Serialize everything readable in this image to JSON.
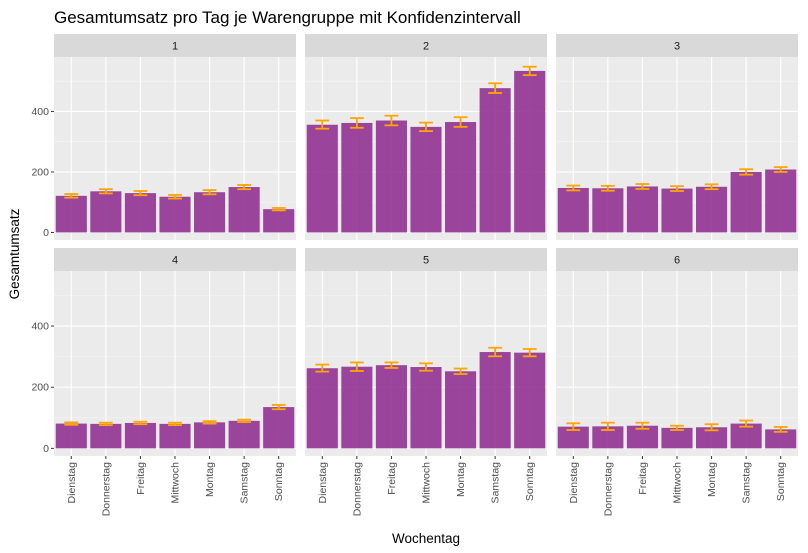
{
  "chart_data": {
    "type": "bar",
    "title": "Gesamtumsatz pro Tag je Warengruppe mit Konfidenzintervall",
    "xlabel": "Wochentag",
    "ylabel": "Gesamtumsatz",
    "categories": [
      "Dienstag",
      "Donnerstag",
      "Freitag",
      "Mittwoch",
      "Montag",
      "Samstag",
      "Sonntag"
    ],
    "yticks": [
      0,
      200,
      400
    ],
    "ylim": [
      -25,
      580
    ],
    "grid": true,
    "facet_layout": "2 rows x 3 columns",
    "colors": {
      "bar": "#8e2c91",
      "error_bar": "#ffa500",
      "panel_background": "#ebebeb",
      "strip_background": "#d9d9d9",
      "grid_major": "#ffffff"
    },
    "facets": [
      {
        "label": "1",
        "values": [
          121,
          136,
          130,
          118,
          133,
          150,
          77
        ],
        "ci_low": [
          115,
          129,
          123,
          112,
          126,
          143,
          73
        ],
        "ci_high": [
          127,
          143,
          137,
          124,
          140,
          157,
          81
        ]
      },
      {
        "label": "2",
        "values": [
          356,
          362,
          370,
          349,
          365,
          477,
          534
        ],
        "ci_low": [
          343,
          346,
          354,
          335,
          349,
          461,
          520
        ],
        "ci_high": [
          370,
          378,
          386,
          363,
          381,
          493,
          548
        ]
      },
      {
        "label": "3",
        "values": [
          147,
          146,
          152,
          145,
          151,
          200,
          208
        ],
        "ci_low": [
          139,
          138,
          144,
          137,
          143,
          191,
          200
        ],
        "ci_high": [
          155,
          154,
          160,
          153,
          159,
          209,
          216
        ]
      },
      {
        "label": "4",
        "values": [
          81,
          80,
          83,
          80,
          85,
          90,
          135
        ],
        "ci_low": [
          77,
          76,
          79,
          76,
          81,
          86,
          128
        ],
        "ci_high": [
          85,
          84,
          87,
          84,
          89,
          94,
          142
        ]
      },
      {
        "label": "5",
        "values": [
          262,
          267,
          272,
          266,
          252,
          315,
          313
        ],
        "ci_low": [
          251,
          253,
          263,
          254,
          243,
          301,
          301
        ],
        "ci_high": [
          274,
          281,
          281,
          278,
          261,
          329,
          325
        ]
      },
      {
        "label": "6",
        "values": [
          71,
          72,
          74,
          67,
          69,
          81,
          62
        ],
        "ci_low": [
          60,
          60,
          64,
          60,
          59,
          71,
          54
        ],
        "ci_high": [
          82,
          84,
          84,
          74,
          79,
          91,
          70
        ]
      }
    ]
  }
}
